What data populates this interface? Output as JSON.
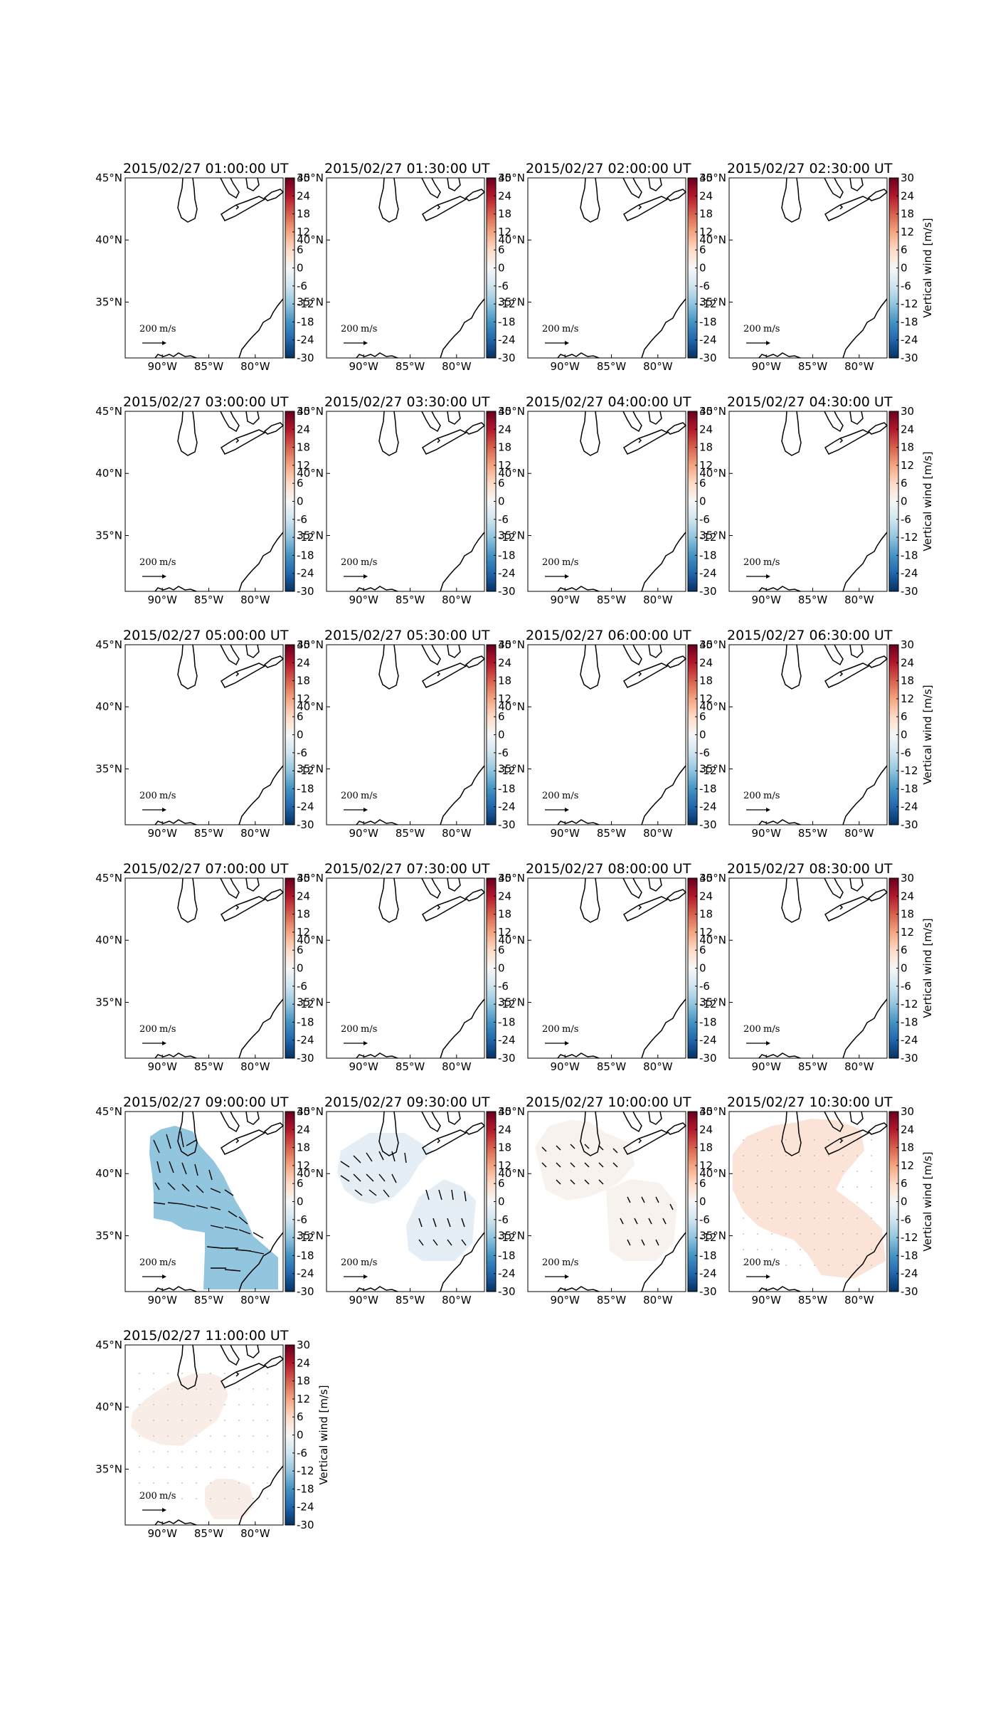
{
  "chart_data": {
    "type": "heatmap",
    "panels": [
      {
        "title": "2015/02/27 01:00:00 UT",
        "fill": null
      },
      {
        "title": "2015/02/27 01:30:00 UT",
        "fill": null
      },
      {
        "title": "2015/02/27 02:00:00 UT",
        "fill": null
      },
      {
        "title": "2015/02/27 02:30:00 UT",
        "fill": null
      },
      {
        "title": "2015/02/27 03:00:00 UT",
        "fill": null
      },
      {
        "title": "2015/02/27 03:30:00 UT",
        "fill": null
      },
      {
        "title": "2015/02/27 04:00:00 UT",
        "fill": null
      },
      {
        "title": "2015/02/27 04:30:00 UT",
        "fill": null
      },
      {
        "title": "2015/02/27 05:00:00 UT",
        "fill": null
      },
      {
        "title": "2015/02/27 05:30:00 UT",
        "fill": null
      },
      {
        "title": "2015/02/27 06:00:00 UT",
        "fill": null
      },
      {
        "title": "2015/02/27 06:30:00 UT",
        "fill": null
      },
      {
        "title": "2015/02/27 07:00:00 UT",
        "fill": null
      },
      {
        "title": "2015/02/27 07:30:00 UT",
        "fill": null
      },
      {
        "title": "2015/02/27 08:00:00 UT",
        "fill": null
      },
      {
        "title": "2015/02/27 08:30:00 UT",
        "fill": null
      },
      {
        "title": "2015/02/27 09:00:00 UT",
        "fill": {
          "value": -12,
          "shape": "A",
          "arrow_length_ms": 160
        }
      },
      {
        "title": "2015/02/27 09:30:00 UT",
        "fill": {
          "value": -3,
          "shape": "B",
          "arrow_length_ms": 110
        }
      },
      {
        "title": "2015/02/27 10:00:00 UT",
        "fill": {
          "value": 1,
          "shape": "C",
          "arrow_length_ms": 75
        }
      },
      {
        "title": "2015/02/27 10:30:00 UT",
        "fill": {
          "value": 4,
          "shape": "D",
          "arrow_length_ms": 10
        }
      },
      {
        "title": "2015/02/27 11:00:00 UT",
        "fill": {
          "value": 2,
          "shape": "E",
          "arrow_length_ms": 10
        }
      }
    ],
    "lon_ticks": [
      {
        "lon": -90,
        "label": "90°W"
      },
      {
        "lon": -85,
        "label": "85°W"
      },
      {
        "lon": -80,
        "label": "80°W"
      }
    ],
    "lat_ticks": [
      {
        "lat": 45,
        "label": "45°N"
      },
      {
        "lat": 40,
        "label": "40°N"
      },
      {
        "lat": 35,
        "label": "35°N"
      }
    ],
    "lon_range": [
      -94,
      -77
    ],
    "lat_range": [
      30.5,
      45
    ],
    "colorbar": {
      "label": "Vertical wind [m/s]",
      "range": [
        -30,
        30
      ],
      "ticks": [
        30,
        24,
        18,
        12,
        6,
        0,
        -6,
        -12,
        -18,
        -24,
        -30
      ],
      "colormap": "RdBu_r"
    },
    "reference_arrow": {
      "label": "200",
      "unit": "m/s",
      "value": 200
    }
  }
}
